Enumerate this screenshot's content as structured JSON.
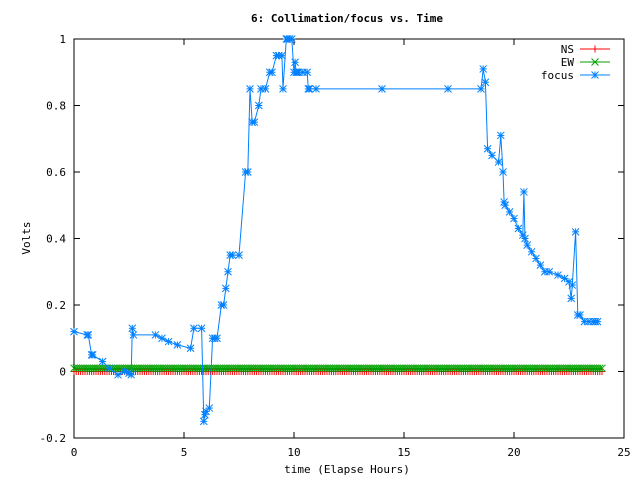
{
  "chart_data": {
    "type": "line",
    "title": "6: Collimation/focus vs. Time",
    "xlabel": "time (Elapse Hours)",
    "ylabel": "Volts",
    "xlim": [
      0,
      25
    ],
    "ylim": [
      -0.2,
      1
    ],
    "x_ticks": [
      0,
      5,
      10,
      15,
      20,
      25
    ],
    "y_ticks": [
      -0.2,
      0,
      0.2,
      0.4,
      0.6,
      0.8,
      1
    ],
    "x_tick_labels": [
      "0",
      "5",
      "10",
      "15",
      "20",
      "25"
    ],
    "y_tick_labels": [
      "-0.2",
      "0",
      "0.2",
      "0.4",
      "0.6",
      "0.8",
      "1"
    ],
    "grid": false,
    "legend_position": "top-right",
    "series": [
      {
        "name": "NS",
        "color": "#ff0000",
        "marker": "plus",
        "x": [
          0,
          24
        ],
        "y": [
          0.0,
          0.0
        ]
      },
      {
        "name": "EW",
        "color": "#00a000",
        "marker": "cross",
        "x": [
          0,
          24
        ],
        "y": [
          0.01,
          0.01
        ]
      },
      {
        "name": "focus",
        "color": "#0080ff",
        "marker": "star",
        "x": [
          0,
          0.6,
          0.65,
          0.8,
          0.85,
          1.3,
          1.6,
          2.0,
          2.3,
          2.5,
          2.6,
          2.65,
          2.7,
          3.7,
          4.0,
          4.3,
          4.7,
          5.3,
          5.45,
          5.8,
          5.9,
          5.95,
          6.0,
          6.15,
          6.3,
          6.4,
          6.5,
          6.7,
          6.8,
          6.9,
          7.0,
          7.1,
          7.2,
          7.5,
          7.8,
          7.9,
          8.0,
          8.1,
          8.2,
          8.4,
          8.5,
          8.7,
          8.9,
          9.0,
          9.2,
          9.3,
          9.45,
          9.5,
          9.65,
          9.7,
          9.8,
          9.9,
          10.0,
          10.05,
          10.1,
          10.15,
          10.2,
          10.4,
          10.6,
          10.65,
          10.7,
          11.0,
          14.0,
          17.0,
          18.5,
          18.6,
          18.7,
          18.8,
          19.0,
          19.3,
          19.4,
          19.5,
          19.55,
          19.6,
          19.8,
          20.0,
          20.2,
          20.4,
          20.45,
          20.5,
          20.6,
          20.8,
          21.0,
          21.2,
          21.4,
          21.6,
          22.0,
          22.3,
          22.5,
          22.6,
          22.65,
          22.8,
          22.9,
          23.0,
          23.2,
          23.4,
          23.6,
          23.7,
          23.8
        ],
        "y": [
          0.12,
          0.11,
          0.11,
          0.05,
          0.05,
          0.03,
          0.01,
          -0.01,
          0.0,
          -0.005,
          -0.01,
          0.13,
          0.11,
          0.11,
          0.1,
          0.09,
          0.08,
          0.07,
          0.13,
          0.13,
          -0.15,
          -0.13,
          -0.12,
          -0.11,
          0.1,
          0.1,
          0.1,
          0.2,
          0.2,
          0.25,
          0.3,
          0.35,
          0.35,
          0.35,
          0.6,
          0.6,
          0.85,
          0.75,
          0.75,
          0.8,
          0.85,
          0.85,
          0.9,
          0.9,
          0.95,
          0.95,
          0.95,
          0.85,
          1.0,
          1.0,
          1.0,
          1.0,
          0.9,
          0.93,
          0.9,
          0.9,
          0.9,
          0.9,
          0.9,
          0.85,
          0.85,
          0.85,
          0.85,
          0.85,
          0.85,
          0.91,
          0.87,
          0.67,
          0.65,
          0.63,
          0.71,
          0.6,
          0.51,
          0.5,
          0.48,
          0.46,
          0.43,
          0.41,
          0.54,
          0.4,
          0.38,
          0.36,
          0.34,
          0.32,
          0.3,
          0.3,
          0.29,
          0.28,
          0.27,
          0.22,
          0.26,
          0.42,
          0.17,
          0.17,
          0.15,
          0.15,
          0.15,
          0.15,
          0.15
        ]
      }
    ]
  }
}
